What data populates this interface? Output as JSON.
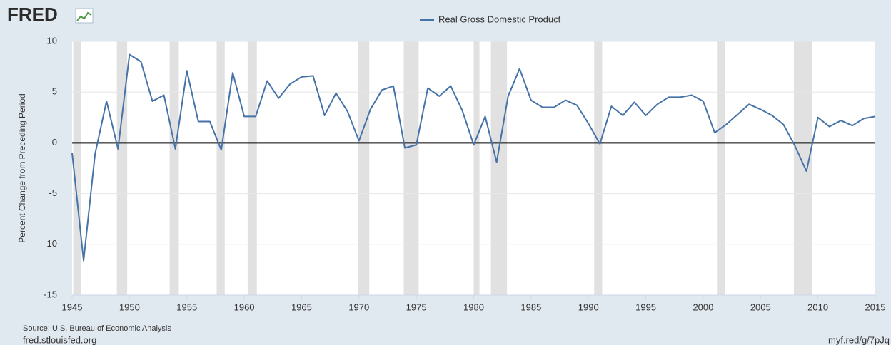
{
  "logo": "FRED",
  "source": "Source: U.S. Bureau of Economic Analysis",
  "site": "fred.stlouisfed.org",
  "short_link": "myf.red/g/7pJq",
  "chart_data": {
    "type": "line",
    "ylabel": "Percent Change from Preceding Period",
    "x": [
      1945,
      1946,
      1947,
      1948,
      1949,
      1950,
      1951,
      1952,
      1953,
      1954,
      1955,
      1956,
      1957,
      1958,
      1959,
      1960,
      1961,
      1962,
      1963,
      1964,
      1965,
      1966,
      1967,
      1968,
      1969,
      1970,
      1971,
      1972,
      1973,
      1974,
      1975,
      1976,
      1977,
      1978,
      1979,
      1980,
      1981,
      1982,
      1983,
      1984,
      1985,
      1986,
      1987,
      1988,
      1989,
      1990,
      1991,
      1992,
      1993,
      1994,
      1995,
      1996,
      1997,
      1998,
      1999,
      2000,
      2001,
      2002,
      2003,
      2004,
      2005,
      2006,
      2007,
      2008,
      2009,
      2010,
      2011,
      2012,
      2013,
      2014,
      2015
    ],
    "series": [
      {
        "name": "Real Gross Domestic Product",
        "color": "#4572a7",
        "values": [
          -1.0,
          -11.6,
          -1.1,
          4.1,
          -0.6,
          8.7,
          8.0,
          4.1,
          4.7,
          -0.6,
          7.1,
          2.1,
          2.1,
          -0.7,
          6.9,
          2.6,
          2.6,
          6.1,
          4.4,
          5.8,
          6.5,
          6.6,
          2.7,
          4.9,
          3.1,
          0.2,
          3.3,
          5.2,
          5.6,
          -0.5,
          -0.2,
          5.4,
          4.6,
          5.6,
          3.2,
          -0.2,
          2.6,
          -1.9,
          4.6,
          7.3,
          4.2,
          3.5,
          3.5,
          4.2,
          3.7,
          1.9,
          -0.1,
          3.6,
          2.7,
          4.0,
          2.7,
          3.8,
          4.5,
          4.5,
          4.7,
          4.1,
          1.0,
          1.8,
          2.8,
          3.8,
          3.3,
          2.7,
          1.8,
          -0.3,
          -2.8,
          2.5,
          1.6,
          2.2,
          1.7,
          2.4,
          2.6
        ]
      }
    ],
    "recessions": [
      [
        1945.1,
        1945.8
      ],
      [
        1948.9,
        1949.8
      ],
      [
        1953.5,
        1954.3
      ],
      [
        1957.6,
        1958.3
      ],
      [
        1960.3,
        1961.1
      ],
      [
        1969.9,
        1970.9
      ],
      [
        1973.9,
        1975.2
      ],
      [
        1980.0,
        1980.5
      ],
      [
        1981.5,
        1982.9
      ],
      [
        1990.5,
        1991.2
      ],
      [
        2001.2,
        2001.9
      ],
      [
        2007.9,
        2009.5
      ]
    ],
    "recession_color": "#e1e1e1",
    "xlim": [
      1945,
      2015
    ],
    "xticks": [
      1945,
      1950,
      1955,
      1960,
      1965,
      1970,
      1975,
      1980,
      1985,
      1990,
      1995,
      2000,
      2005,
      2010,
      2015
    ],
    "ylim": [
      -15,
      10
    ],
    "yticks": [
      -15,
      -10,
      -5,
      0,
      5,
      10
    ],
    "grid": true
  }
}
